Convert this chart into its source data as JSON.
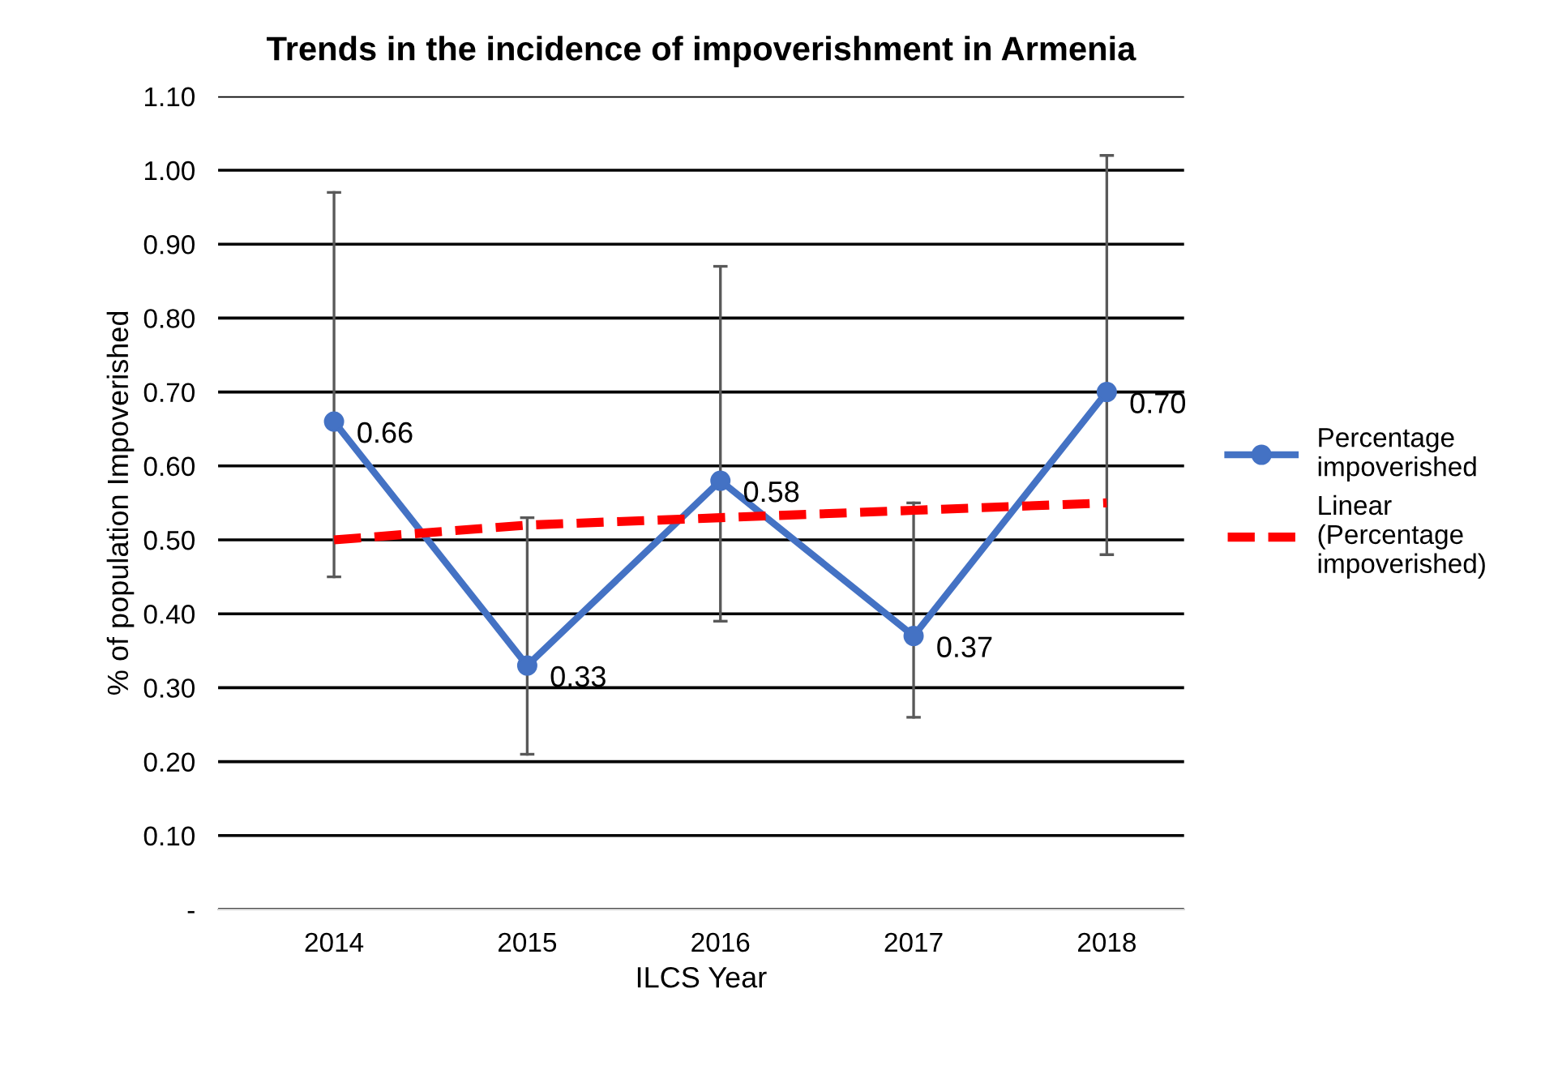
{
  "chart_data": {
    "type": "line",
    "title": "Trends in the incidence of impoverishment in Armenia",
    "xlabel": "ILCS Year",
    "ylabel": "% of population Impoverished",
    "categories": [
      "2014",
      "2015",
      "2016",
      "2017",
      "2018"
    ],
    "series": [
      {
        "name": "Percentage\nimpoverished",
        "color": "#4472c4",
        "values": [
          0.66,
          0.33,
          0.58,
          0.37,
          0.7
        ],
        "marker": "circle",
        "line_style": "solid",
        "value_labels": [
          "0.66",
          "0.33",
          "0.58",
          "0.37",
          "0.70"
        ],
        "errors": [
          [
            0.45,
            0.97
          ],
          [
            0.21,
            0.53
          ],
          [
            0.39,
            0.87
          ],
          [
            0.26,
            0.55
          ],
          [
            0.48,
            1.02
          ]
        ]
      },
      {
        "name": "Linear\n(Percentage\nimpoverished)",
        "color": "#ff0000",
        "values": [
          0.5,
          0.52,
          0.53,
          0.54,
          0.55
        ],
        "marker": "none",
        "line_style": "dashed"
      }
    ],
    "ylim": [
      0,
      1.1
    ],
    "yticks": [
      {
        "value": 0,
        "label": "-"
      },
      {
        "value": 0.1,
        "label": "0.10"
      },
      {
        "value": 0.2,
        "label": "0.20"
      },
      {
        "value": 0.3,
        "label": "0.30"
      },
      {
        "value": 0.4,
        "label": "0.40"
      },
      {
        "value": 0.5,
        "label": "0.50"
      },
      {
        "value": 0.6,
        "label": "0.60"
      },
      {
        "value": 0.7,
        "label": "0.70"
      },
      {
        "value": 0.8,
        "label": "0.80"
      },
      {
        "value": 0.9,
        "label": "0.90"
      },
      {
        "value": 1.0,
        "label": "1.00"
      },
      {
        "value": 1.1,
        "label": "1.10"
      }
    ],
    "grid": "y",
    "legend": "right"
  }
}
